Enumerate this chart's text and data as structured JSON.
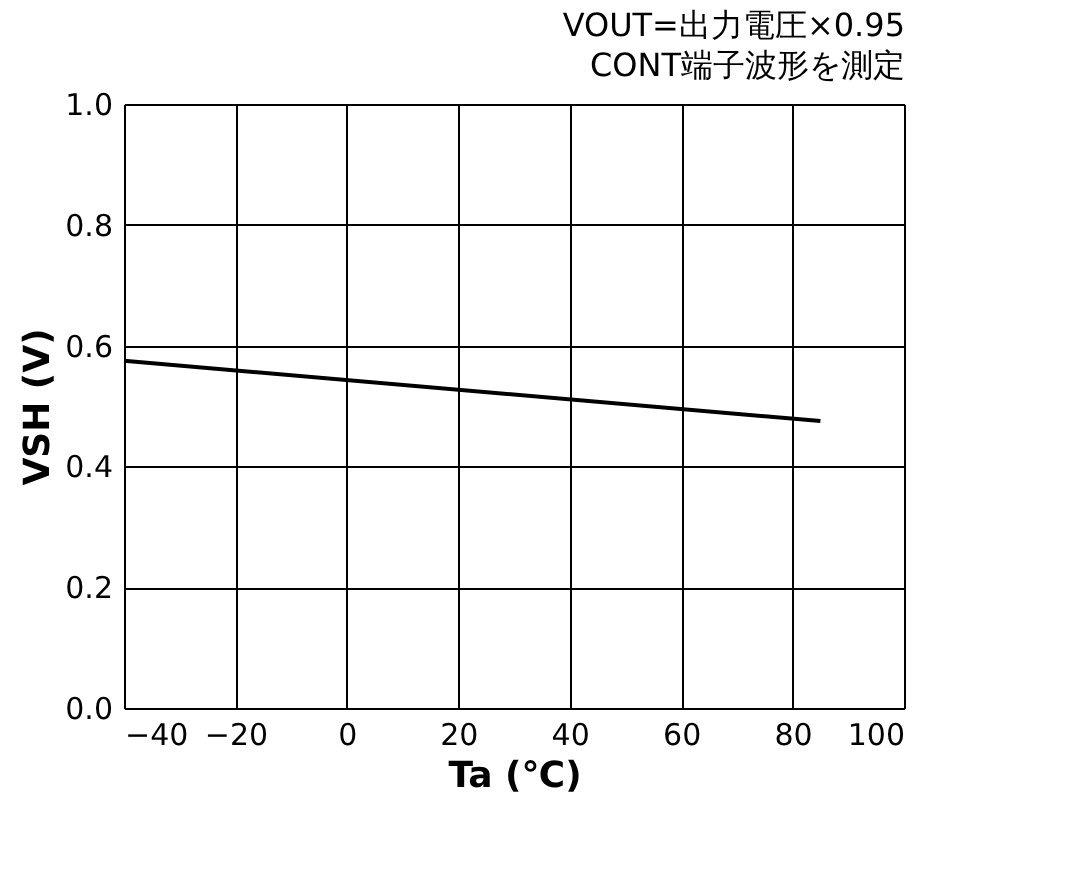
{
  "chart_data": {
    "type": "line",
    "annotations": [
      "VOUT=出力電圧×0.95",
      "CONT端子波形を測定"
    ],
    "xlabel": "Ta (℃)",
    "ylabel": "VSH (V)",
    "x": [
      -40,
      85
    ],
    "series": [
      {
        "color": "#000000",
        "values": [
          0.575,
          0.475
        ]
      }
    ],
    "xlim": [
      -40,
      100
    ],
    "xticks": [
      -40,
      -20,
      0,
      20,
      40,
      60,
      80,
      100
    ],
    "ylim": [
      0,
      1
    ],
    "yticks": [
      {
        "value": 0,
        "label": "0.0"
      },
      0.2,
      0.4,
      0.6,
      0.8,
      {
        "value": 1,
        "label": "1.0"
      }
    ],
    "grid": true,
    "marker": "none",
    "line_style": "solid"
  }
}
